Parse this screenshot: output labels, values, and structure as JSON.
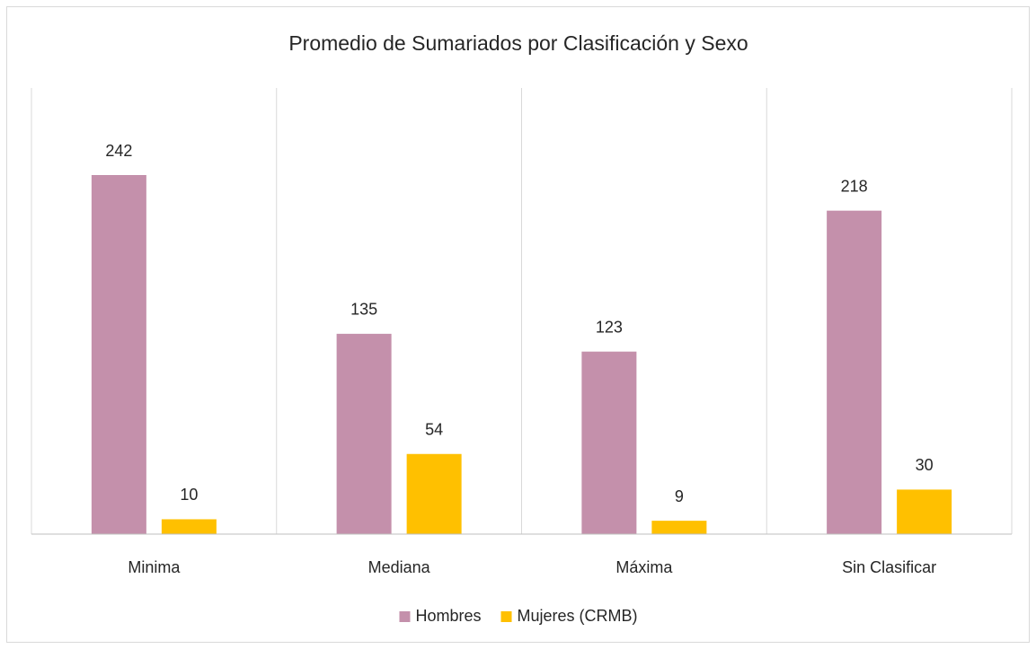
{
  "chart_data": {
    "type": "bar",
    "title": "Promedio de Sumariados por Clasificación y Sexo",
    "categories": [
      "Minima",
      "Mediana",
      "Máxima",
      "Sin Clasificar"
    ],
    "series": [
      {
        "name": "Hombres",
        "color": "#c490ab",
        "values": [
          242,
          135,
          123,
          218
        ]
      },
      {
        "name": "Mujeres (CRMB)",
        "color": "#ffc000",
        "values": [
          10,
          54,
          9,
          30
        ]
      }
    ],
    "legend": "bottom",
    "grid": "vertical"
  }
}
